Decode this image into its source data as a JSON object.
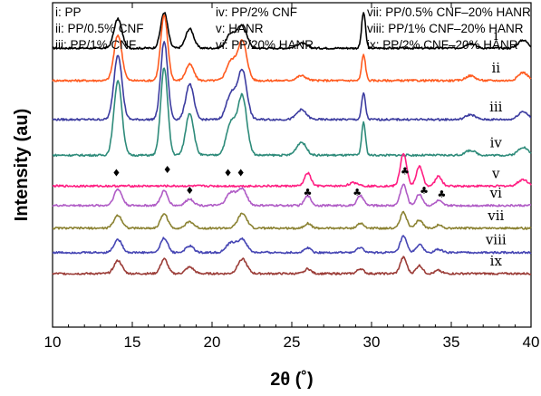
{
  "chart_data": {
    "type": "line",
    "xlabel": "2θ (˚)",
    "ylabel": "Intensity (au)",
    "xlim": [
      10,
      40
    ],
    "xticks": [
      10,
      15,
      20,
      25,
      30,
      35,
      40
    ],
    "yticks": "none",
    "grid": false,
    "legend": {
      "placement": "top",
      "columns": [
        [
          "i: PP",
          "ii: PP/0.5% CNF",
          "iii: PP/1% CNF"
        ],
        [
          "iv: PP/2% CNF",
          "v: HANR",
          "vi: PP/20% HANR"
        ],
        [
          "vii: PP/0.5% CNF–20% HANR",
          "viii: PP/1% CNF–20% HANR",
          "ix: PP/2% CNF–20% HANR"
        ]
      ]
    },
    "series": [
      {
        "name": "i",
        "color": "#000000",
        "baseline": 0.86,
        "peaks": [
          [
            14.1,
            0.09,
            0.25
          ],
          [
            17.0,
            0.11,
            0.22
          ],
          [
            18.6,
            0.06,
            0.25
          ],
          [
            21.2,
            0.045,
            0.3
          ],
          [
            21.9,
            0.07,
            0.28
          ],
          [
            25.6,
            0.015,
            0.3
          ],
          [
            29.5,
            0.11,
            0.12
          ],
          [
            36.2,
            0.015,
            0.3
          ],
          [
            39.5,
            0.025,
            0.3
          ]
        ]
      },
      {
        "name": "ii",
        "color": "#ff5a1e",
        "baseline": 0.76,
        "peaks": [
          [
            14.1,
            0.14,
            0.25
          ],
          [
            17.0,
            0.2,
            0.22
          ],
          [
            18.6,
            0.05,
            0.25
          ],
          [
            21.2,
            0.06,
            0.3
          ],
          [
            21.9,
            0.12,
            0.28
          ],
          [
            25.6,
            0.015,
            0.3
          ],
          [
            29.5,
            0.08,
            0.12
          ],
          [
            36.2,
            0.015,
            0.3
          ],
          [
            39.5,
            0.025,
            0.3
          ]
        ]
      },
      {
        "name": "iii",
        "color": "#3c3ca0",
        "baseline": 0.64,
        "peaks": [
          [
            14.1,
            0.2,
            0.25
          ],
          [
            17.0,
            0.24,
            0.22
          ],
          [
            18.6,
            0.11,
            0.25
          ],
          [
            21.2,
            0.08,
            0.3
          ],
          [
            21.9,
            0.15,
            0.28
          ],
          [
            25.6,
            0.03,
            0.3
          ],
          [
            29.5,
            0.08,
            0.12
          ],
          [
            36.2,
            0.015,
            0.3
          ],
          [
            39.5,
            0.025,
            0.3
          ]
        ]
      },
      {
        "name": "iv",
        "color": "#2e8b7a",
        "baseline": 0.53,
        "peaks": [
          [
            14.1,
            0.23,
            0.25
          ],
          [
            17.0,
            0.27,
            0.22
          ],
          [
            18.6,
            0.13,
            0.25
          ],
          [
            21.2,
            0.1,
            0.3
          ],
          [
            21.9,
            0.18,
            0.28
          ],
          [
            25.6,
            0.04,
            0.3
          ],
          [
            29.5,
            0.1,
            0.12
          ],
          [
            36.2,
            0.015,
            0.3
          ],
          [
            39.5,
            0.025,
            0.3
          ]
        ]
      },
      {
        "name": "v",
        "color": "#ff1e82",
        "baseline": 0.435,
        "peaks": [
          [
            26.0,
            0.04,
            0.2
          ],
          [
            28.9,
            0.01,
            0.3
          ],
          [
            32.0,
            0.1,
            0.2
          ],
          [
            33.0,
            0.06,
            0.2
          ],
          [
            34.2,
            0.03,
            0.2
          ],
          [
            39.5,
            0.02,
            0.3
          ]
        ]
      },
      {
        "name": "vi",
        "color": "#b05cc6",
        "baseline": 0.375,
        "peaks": [
          [
            14.1,
            0.05,
            0.25
          ],
          [
            17.0,
            0.045,
            0.22
          ],
          [
            18.6,
            0.02,
            0.25
          ],
          [
            21.2,
            0.04,
            0.3
          ],
          [
            21.9,
            0.05,
            0.28
          ],
          [
            26.0,
            0.03,
            0.2
          ],
          [
            29.3,
            0.03,
            0.2
          ],
          [
            32.0,
            0.065,
            0.2
          ],
          [
            33.0,
            0.035,
            0.2
          ],
          [
            34.2,
            0.015,
            0.2
          ]
        ]
      },
      {
        "name": "vii",
        "color": "#8b8232",
        "baseline": 0.305,
        "peaks": [
          [
            14.1,
            0.04,
            0.25
          ],
          [
            17.0,
            0.045,
            0.22
          ],
          [
            18.6,
            0.02,
            0.25
          ],
          [
            21.9,
            0.045,
            0.28
          ],
          [
            26.0,
            0.015,
            0.2
          ],
          [
            29.3,
            0.015,
            0.2
          ],
          [
            32.0,
            0.05,
            0.2
          ],
          [
            33.0,
            0.025,
            0.2
          ],
          [
            34.2,
            0.01,
            0.2
          ]
        ]
      },
      {
        "name": "viii",
        "color": "#4646b4",
        "baseline": 0.23,
        "peaks": [
          [
            14.1,
            0.04,
            0.25
          ],
          [
            17.0,
            0.045,
            0.22
          ],
          [
            18.6,
            0.02,
            0.25
          ],
          [
            21.2,
            0.03,
            0.3
          ],
          [
            21.9,
            0.04,
            0.28
          ],
          [
            26.0,
            0.015,
            0.2
          ],
          [
            29.3,
            0.015,
            0.2
          ],
          [
            32.0,
            0.05,
            0.2
          ],
          [
            33.0,
            0.025,
            0.2
          ],
          [
            34.2,
            0.01,
            0.2
          ]
        ]
      },
      {
        "name": "ix",
        "color": "#9b3c37",
        "baseline": 0.165,
        "peaks": [
          [
            14.1,
            0.04,
            0.25
          ],
          [
            17.0,
            0.045,
            0.22
          ],
          [
            18.6,
            0.02,
            0.25
          ],
          [
            21.9,
            0.045,
            0.28
          ],
          [
            26.0,
            0.015,
            0.2
          ],
          [
            29.3,
            0.015,
            0.2
          ],
          [
            32.0,
            0.05,
            0.2
          ],
          [
            33.0,
            0.025,
            0.2
          ],
          [
            34.2,
            0.01,
            0.2
          ]
        ]
      }
    ],
    "annotations": [
      {
        "symbol": "♦",
        "x": 14.0,
        "y": 0.465
      },
      {
        "symbol": "♦",
        "x": 17.2,
        "y": 0.475
      },
      {
        "symbol": "♦",
        "x": 18.6,
        "y": 0.41
      },
      {
        "symbol": "♦",
        "x": 21.0,
        "y": 0.465
      },
      {
        "symbol": "♦",
        "x": 21.8,
        "y": 0.465
      },
      {
        "symbol": "♣",
        "x": 26.0,
        "y": 0.405
      },
      {
        "symbol": "♣",
        "x": 29.1,
        "y": 0.405
      },
      {
        "symbol": "♣",
        "x": 32.1,
        "y": 0.47
      },
      {
        "symbol": "♣",
        "x": 33.3,
        "y": 0.41
      },
      {
        "symbol": "♣",
        "x": 34.4,
        "y": 0.4
      }
    ]
  }
}
